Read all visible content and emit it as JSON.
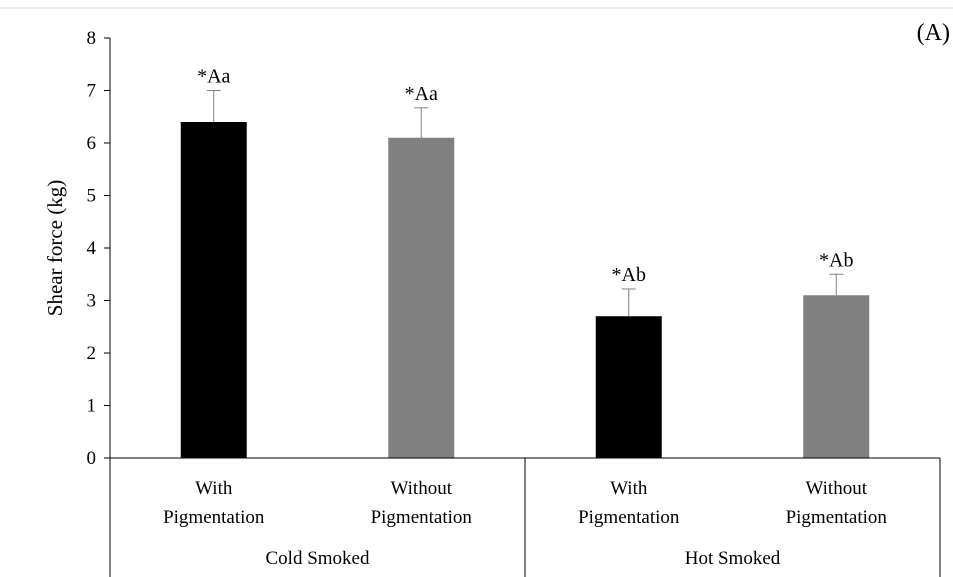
{
  "chart_data": {
    "type": "bar",
    "panel_label": "(A)",
    "ylabel": "Shear force (kg)",
    "ylim": [
      0,
      8
    ],
    "yticks": [
      "0",
      "1",
      "2",
      "3",
      "4",
      "5",
      "6",
      "7",
      "8"
    ],
    "grid": false,
    "groups": [
      {
        "label": "Cold Smoked",
        "categories": [
          {
            "line1": "With",
            "line2": "Pigmentation"
          },
          {
            "line1": "Without",
            "line2": "Pigmentation"
          }
        ]
      },
      {
        "label": "Hot Smoked",
        "categories": [
          {
            "line1": "With",
            "line2": "Pigmentation"
          },
          {
            "line1": "Without",
            "line2": "Pigmentation"
          }
        ]
      }
    ],
    "bars": [
      {
        "value": 6.4,
        "error": 0.6,
        "label": "*Aa",
        "color": "#000000"
      },
      {
        "value": 6.1,
        "error": 0.57,
        "label": "*Aa",
        "color": "#808080"
      },
      {
        "value": 2.7,
        "error": 0.52,
        "label": "*Ab",
        "color": "#000000"
      },
      {
        "value": 3.1,
        "error": 0.4,
        "label": "*Ab",
        "color": "#808080"
      }
    ]
  }
}
